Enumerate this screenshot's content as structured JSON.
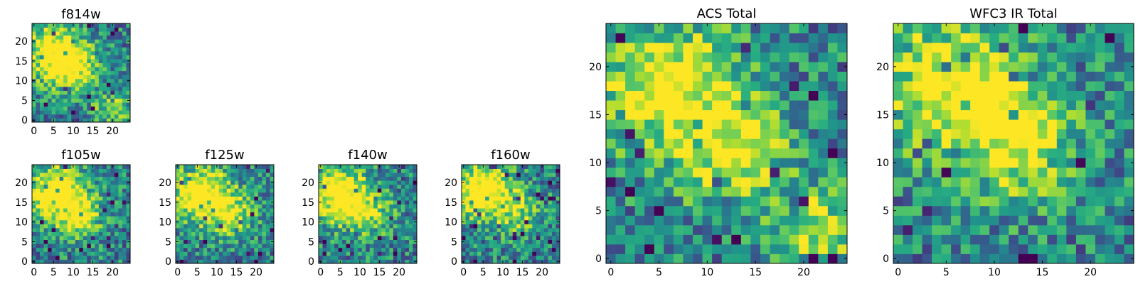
{
  "chart_data": [
    {
      "type": "heatmap",
      "title": "f814w",
      "xlim": [
        0,
        24
      ],
      "ylim": [
        0,
        24
      ],
      "xticks": [
        "0",
        "5",
        "10",
        "15",
        "20"
      ],
      "yticks": [
        "0",
        "5",
        "10",
        "15",
        "20"
      ],
      "colormap": "viridis",
      "pixels": 25,
      "seed": 11,
      "blobs": [
        {
          "x": 5,
          "y": 17,
          "s": 5,
          "a": 0.7
        },
        {
          "x": 11,
          "y": 13,
          "s": 4,
          "a": 0.45
        },
        {
          "x": 20,
          "y": 3,
          "s": 3,
          "a": 0.4
        }
      ]
    },
    {
      "type": "heatmap",
      "title": "f105w",
      "xlim": [
        0,
        24
      ],
      "ylim": [
        0,
        24
      ],
      "xticks": [
        "0",
        "5",
        "10",
        "15",
        "20"
      ],
      "yticks": [
        "0",
        "5",
        "10",
        "15",
        "20"
      ],
      "colormap": "viridis",
      "pixels": 25,
      "seed": 23,
      "blobs": [
        {
          "x": 6,
          "y": 17,
          "s": 5,
          "a": 0.8
        },
        {
          "x": 12,
          "y": 11,
          "s": 4,
          "a": 0.4
        }
      ]
    },
    {
      "type": "heatmap",
      "title": "f125w",
      "xlim": [
        0,
        24
      ],
      "ylim": [
        0,
        24
      ],
      "xticks": [
        "0",
        "5",
        "10",
        "15",
        "20"
      ],
      "yticks": [
        "0",
        "5",
        "10",
        "15",
        "20"
      ],
      "colormap": "viridis",
      "pixels": 25,
      "seed": 37,
      "blobs": [
        {
          "x": 6,
          "y": 17,
          "s": 5,
          "a": 0.75
        },
        {
          "x": 14,
          "y": 12,
          "s": 4,
          "a": 0.45
        }
      ]
    },
    {
      "type": "heatmap",
      "title": "f140w",
      "xlim": [
        0,
        24
      ],
      "ylim": [
        0,
        24
      ],
      "xticks": [
        "0",
        "5",
        "10",
        "15",
        "20"
      ],
      "yticks": [
        "0",
        "5",
        "10",
        "15",
        "20"
      ],
      "colormap": "viridis",
      "pixels": 25,
      "seed": 51,
      "blobs": [
        {
          "x": 5,
          "y": 17,
          "s": 5,
          "a": 0.75
        },
        {
          "x": 13,
          "y": 12,
          "s": 4,
          "a": 0.35
        }
      ]
    },
    {
      "type": "heatmap",
      "title": "f160w",
      "xlim": [
        0,
        24
      ],
      "ylim": [
        0,
        24
      ],
      "xticks": [
        "0",
        "5",
        "10",
        "15",
        "20"
      ],
      "yticks": [
        "0",
        "5",
        "10",
        "15",
        "20"
      ],
      "colormap": "viridis",
      "pixels": 25,
      "seed": 67,
      "blobs": [
        {
          "x": 5,
          "y": 18,
          "s": 5,
          "a": 0.8
        },
        {
          "x": 14,
          "y": 12,
          "s": 4,
          "a": 0.35
        }
      ]
    },
    {
      "type": "heatmap",
      "title": "ACS Total",
      "xlim": [
        0,
        24
      ],
      "ylim": [
        0,
        24
      ],
      "xticks": [
        "0",
        "5",
        "10",
        "15",
        "20"
      ],
      "yticks": [
        "0",
        "5",
        "10",
        "15",
        "20"
      ],
      "colormap": "viridis",
      "pixels": 25,
      "seed": 83,
      "blobs": [
        {
          "x": 6,
          "y": 18,
          "s": 5,
          "a": 0.6
        },
        {
          "x": 13,
          "y": 11,
          "s": 4,
          "a": 0.45
        },
        {
          "x": 22,
          "y": 3,
          "s": 3,
          "a": 0.45
        }
      ]
    },
    {
      "type": "heatmap",
      "title": "WFC3 IR Total",
      "xlim": [
        0,
        24
      ],
      "ylim": [
        0,
        24
      ],
      "xticks": [
        "0",
        "5",
        "10",
        "15",
        "20"
      ],
      "yticks": [
        "0",
        "5",
        "10",
        "15",
        "20"
      ],
      "colormap": "viridis",
      "pixels": 25,
      "seed": 97,
      "blobs": [
        {
          "x": 6,
          "y": 18,
          "s": 5,
          "a": 0.65
        },
        {
          "x": 13,
          "y": 12,
          "s": 4,
          "a": 0.5
        }
      ]
    }
  ],
  "colors": {
    "viridis_low": "#440154",
    "viridis_mid": "#21918c",
    "viridis_high": "#fde725",
    "frame": "#000000",
    "background": "#ffffff"
  }
}
